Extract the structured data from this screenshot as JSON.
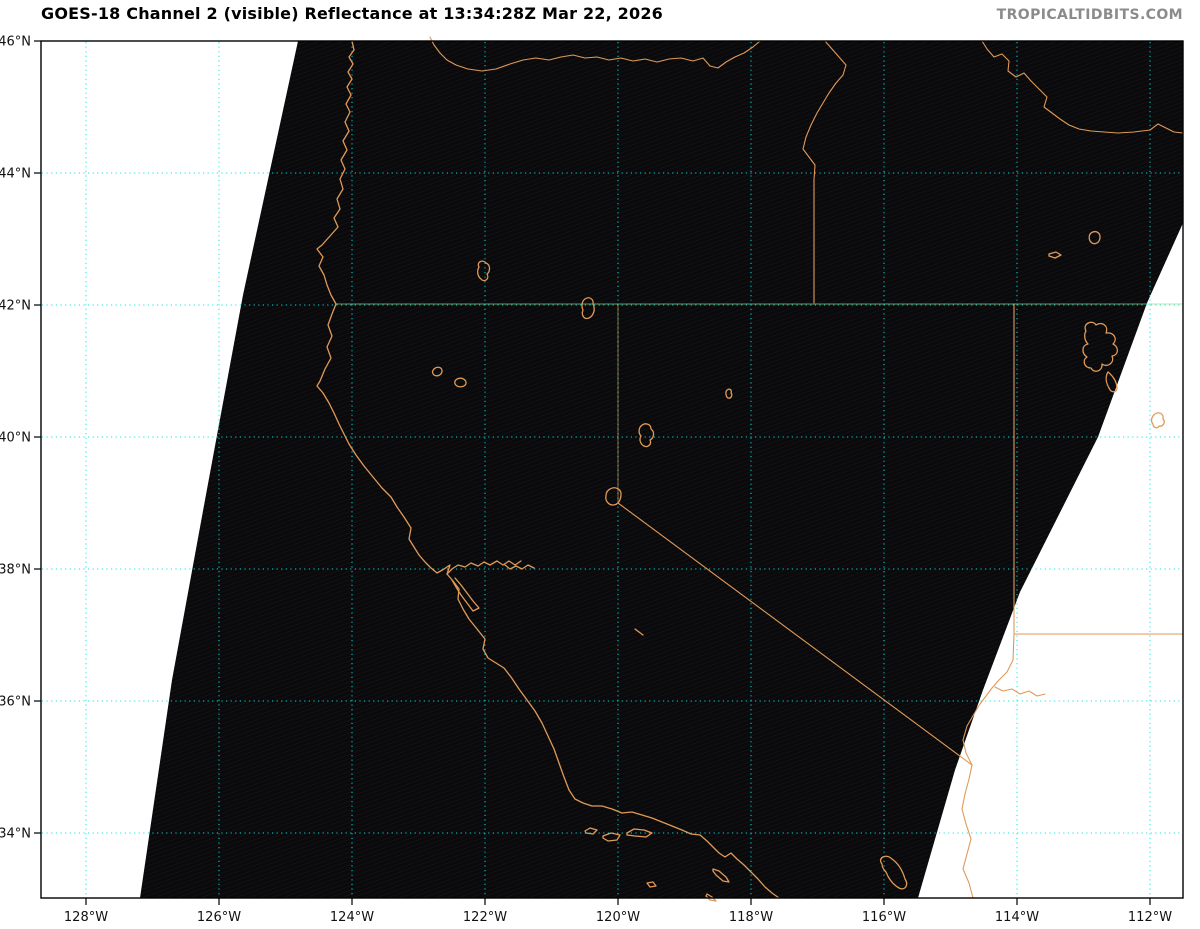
{
  "header": {
    "title": "GOES-18 Channel 2 (visible) Reflectance at 13:34:28Z Mar 22, 2026",
    "watermark": "TROPICALTIDBITS.COM"
  },
  "map": {
    "satellite": "GOES-18",
    "channel": "Channel 2 (visible)",
    "product": "Reflectance",
    "valid_time": "13:34:28Z Mar 22, 2026",
    "region_features": [
      "Pacific coastline",
      "state borders",
      "lakes",
      "satellite swath edges"
    ]
  },
  "axes": {
    "lat_ticks": [
      "46°N",
      "44°N",
      "42°N",
      "40°N",
      "38°N",
      "36°N",
      "34°N"
    ],
    "lon_ticks": [
      "128°W",
      "126°W",
      "124°W",
      "122°W",
      "120°W",
      "118°W",
      "116°W",
      "114°W",
      "112°W"
    ]
  },
  "colors": {
    "coastline": "#E09A58",
    "gridline": "#00E8E8",
    "swath_fill": "#0A0A0C",
    "watermark": "#8B8B8B",
    "background": "#FFFFFF",
    "title_text": "#000000"
  }
}
